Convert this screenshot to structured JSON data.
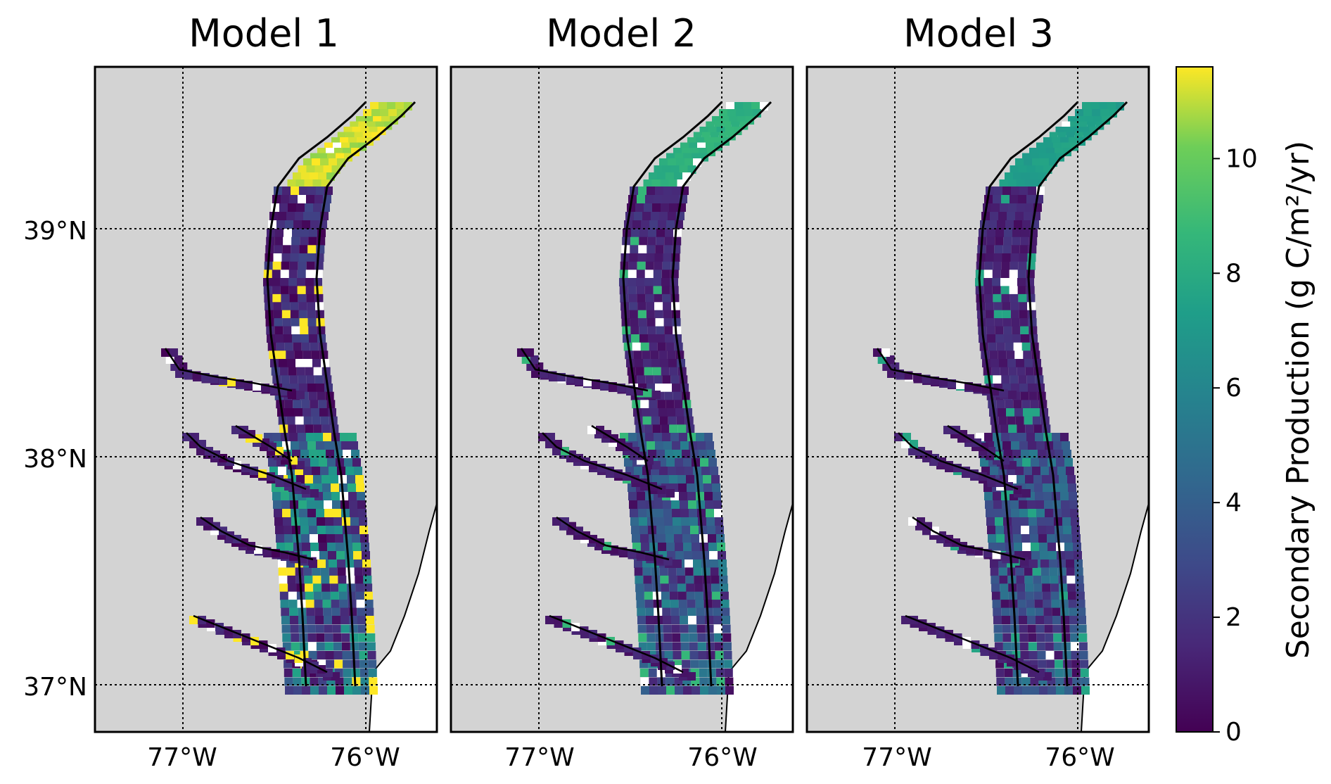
{
  "figure": {
    "panels": [
      {
        "title": "Model 1",
        "intensity": 1.0
      },
      {
        "title": "Model 2",
        "intensity": 0.72
      },
      {
        "title": "Model 3",
        "intensity": 0.62
      }
    ],
    "lat_labels": [
      "39°N",
      "38°N",
      "37°N"
    ],
    "lon_labels": [
      "77°W",
      "76°W"
    ],
    "colorbar": {
      "label": "Secondary Production (g C/m²/yr)",
      "min": 0,
      "max": 11.6,
      "ticks": [
        "0",
        "2",
        "4",
        "6",
        "8",
        "10"
      ],
      "colormap": "viridis"
    },
    "colors": {
      "land": "#d3d3d3",
      "ocean": "#ffffff",
      "coast": "#000000",
      "grid": "#000000"
    }
  }
}
